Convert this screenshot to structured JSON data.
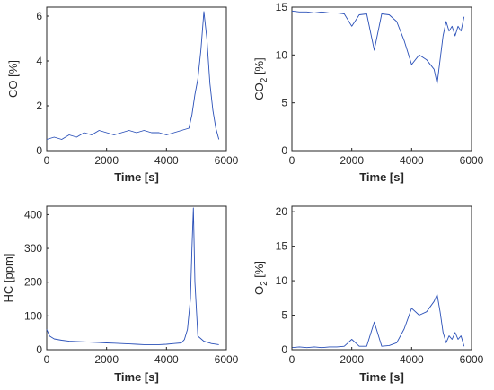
{
  "chart_data": [
    {
      "type": "line",
      "xlabel": "Time [s]",
      "ylabel": "CO [%]",
      "ylabel_parts": {
        "pre": "CO [%]",
        "sub": "",
        "post": ""
      },
      "xlim": [
        0,
        6000
      ],
      "ylim": [
        0,
        6.4
      ],
      "xticks": [
        "0",
        "2000",
        "4000",
        "6000"
      ],
      "yticks": [
        "0",
        "2",
        "4",
        "6"
      ],
      "xtick_values": [
        0,
        2000,
        4000,
        6000
      ],
      "ytick_values": [
        0,
        2,
        4,
        6
      ],
      "line_color": "#2a50b8",
      "series": [
        {
          "x": [
            0,
            250,
            500,
            750,
            1000,
            1250,
            1500,
            1750,
            2000,
            2250,
            2500,
            2750,
            3000,
            3250,
            3500,
            3750,
            4000,
            4250,
            4500,
            4750,
            4850,
            4950,
            5050,
            5150,
            5250,
            5350,
            5450,
            5550,
            5650,
            5750
          ],
          "y": [
            0.5,
            0.6,
            0.5,
            0.7,
            0.6,
            0.8,
            0.7,
            0.9,
            0.8,
            0.7,
            0.8,
            0.9,
            0.8,
            0.9,
            0.8,
            0.8,
            0.7,
            0.8,
            0.9,
            1.0,
            1.6,
            2.5,
            3.2,
            4.5,
            6.2,
            5.0,
            3.0,
            1.8,
            1.0,
            0.5
          ]
        }
      ]
    },
    {
      "type": "line",
      "xlabel": "Time [s]",
      "ylabel": "CO2 [%]",
      "ylabel_parts": {
        "pre": "CO",
        "sub": "2",
        "post": " [%]"
      },
      "xlim": [
        0,
        6000
      ],
      "ylim": [
        0,
        15
      ],
      "xticks": [
        "0",
        "2000",
        "4000",
        "6000"
      ],
      "yticks": [
        "0",
        "5",
        "10",
        "15"
      ],
      "xtick_values": [
        0,
        2000,
        4000,
        6000
      ],
      "ytick_values": [
        0,
        5,
        10,
        15
      ],
      "line_color": "#2a50b8",
      "series": [
        {
          "x": [
            0,
            250,
            500,
            750,
            1000,
            1250,
            1500,
            1750,
            2000,
            2250,
            2500,
            2750,
            3000,
            3250,
            3500,
            3750,
            4000,
            4250,
            4500,
            4750,
            4850,
            4950,
            5050,
            5150,
            5250,
            5350,
            5450,
            5550,
            5650,
            5750
          ],
          "y": [
            14.6,
            14.5,
            14.5,
            14.4,
            14.5,
            14.4,
            14.4,
            14.3,
            13.0,
            14.2,
            14.3,
            10.5,
            14.3,
            14.2,
            13.5,
            11.5,
            9.0,
            10.0,
            9.5,
            8.5,
            7.0,
            9.5,
            12.0,
            13.5,
            12.5,
            13.0,
            12.0,
            13.0,
            12.5,
            14.0
          ]
        }
      ]
    },
    {
      "type": "line",
      "xlabel": "Time [s]",
      "ylabel": "HC [ppm]",
      "ylabel_parts": {
        "pre": "HC [ppm]",
        "sub": "",
        "post": ""
      },
      "xlim": [
        0,
        6000
      ],
      "ylim": [
        0,
        425
      ],
      "xticks": [
        "0",
        "2000",
        "4000",
        "6000"
      ],
      "yticks": [
        "0",
        "100",
        "200",
        "300",
        "400"
      ],
      "xtick_values": [
        0,
        2000,
        4000,
        6000
      ],
      "ytick_values": [
        0,
        100,
        200,
        300,
        400
      ],
      "line_color": "#2a50b8",
      "series": [
        {
          "x": [
            0,
            100,
            250,
            500,
            750,
            1000,
            1250,
            1500,
            1750,
            2000,
            2250,
            2500,
            2750,
            3000,
            3250,
            3500,
            3750,
            4000,
            4250,
            4500,
            4600,
            4700,
            4800,
            4850,
            4900,
            4950,
            5050,
            5250,
            5500,
            5750
          ],
          "y": [
            60,
            40,
            32,
            28,
            25,
            24,
            23,
            22,
            21,
            20,
            19,
            18,
            17,
            16,
            15,
            15,
            15,
            16,
            18,
            20,
            30,
            60,
            150,
            300,
            420,
            200,
            40,
            25,
            18,
            15
          ]
        }
      ]
    },
    {
      "type": "line",
      "xlabel": "Time [s]",
      "ylabel": "O2 [%]",
      "ylabel_parts": {
        "pre": "O",
        "sub": "2",
        "post": " [%]"
      },
      "xlim": [
        0,
        6000
      ],
      "ylim": [
        0,
        20.8
      ],
      "xticks": [
        "0",
        "2000",
        "4000",
        "6000"
      ],
      "yticks": [
        "0",
        "5",
        "10",
        "15",
        "20"
      ],
      "xtick_values": [
        0,
        2000,
        4000,
        6000
      ],
      "ytick_values": [
        0,
        5,
        10,
        15,
        20
      ],
      "line_color": "#2a50b8",
      "series": [
        {
          "x": [
            0,
            250,
            500,
            750,
            1000,
            1250,
            1500,
            1750,
            2000,
            2250,
            2500,
            2750,
            3000,
            3250,
            3500,
            3750,
            4000,
            4250,
            4500,
            4750,
            4850,
            4950,
            5050,
            5150,
            5250,
            5350,
            5450,
            5550,
            5650,
            5750
          ],
          "y": [
            0.3,
            0.4,
            0.3,
            0.4,
            0.3,
            0.4,
            0.4,
            0.5,
            1.5,
            0.5,
            0.5,
            4.0,
            0.5,
            0.6,
            1.0,
            3.0,
            6.0,
            5.0,
            5.5,
            7.0,
            8.0,
            5.5,
            2.5,
            1.0,
            2.0,
            1.5,
            2.5,
            1.5,
            2.0,
            0.5
          ]
        }
      ]
    }
  ]
}
